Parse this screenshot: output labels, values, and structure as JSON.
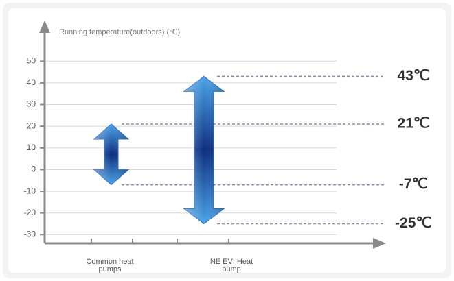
{
  "chart_data": {
    "type": "range",
    "y_axis_label": "Running temperature(outdoors) (℃)",
    "categories": [
      "Common heat pumps",
      "NE EVI Heat pump"
    ],
    "low": {
      "values": [
        -7,
        -25
      ],
      "value_labels": [
        "-7℃",
        "-25℃"
      ]
    },
    "high": {
      "values": [
        21,
        43
      ],
      "value_labels": [
        "21℃",
        "43℃"
      ]
    },
    "color": "#1e5fb4",
    "ylim": [
      -34,
      64
    ],
    "yticks": [
      -30,
      -20,
      -10,
      0,
      10,
      20,
      30,
      40,
      50
    ],
    "grid": true
  }
}
